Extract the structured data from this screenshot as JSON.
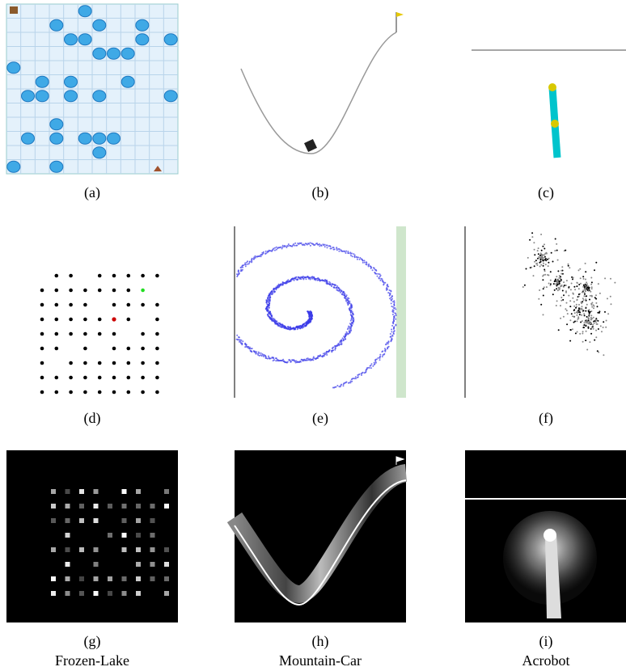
{
  "panels": [
    {
      "label": "(a)"
    },
    {
      "label": "(b)"
    },
    {
      "label": "(c)"
    },
    {
      "label": "(d)"
    },
    {
      "label": "(e)"
    },
    {
      "label": "(f)"
    },
    {
      "label": "(g)",
      "name": "Frozen-Lake"
    },
    {
      "label": "(h)",
      "name": "Mountain-Car"
    },
    {
      "label": "(i)",
      "name": "Acrobot"
    }
  ]
}
